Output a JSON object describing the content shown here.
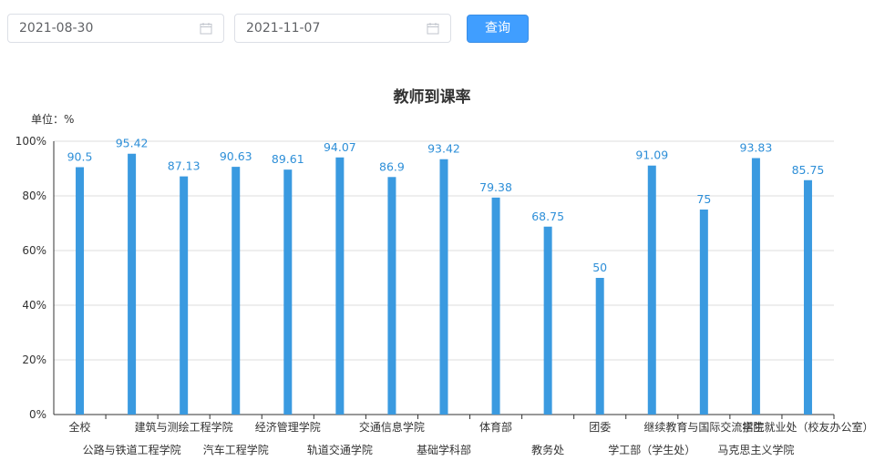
{
  "filters": {
    "start_date": "2021-08-30",
    "end_date": "2021-11-07",
    "query_label": "查询"
  },
  "chart_data": {
    "type": "bar",
    "title": "教师到课率",
    "unit_label": "单位：%",
    "ylim": [
      0,
      100
    ],
    "y_ticks": [
      "0%",
      "20%",
      "40%",
      "60%",
      "80%",
      "100%"
    ],
    "categories": [
      "全校",
      "公路与铁道工程学院",
      "建筑与测绘工程学院",
      "汽车工程学院",
      "经济管理学院",
      "轨道交通学院",
      "交通信息学院",
      "基础学科部",
      "体育部",
      "教务处",
      "团委",
      "学工部（学生处）",
      "继续教育与国际交流学院",
      "马克思主义学院",
      "招生就业处（校友办公室）"
    ],
    "values": [
      90.5,
      95.42,
      87.13,
      90.63,
      89.61,
      94.07,
      86.9,
      93.42,
      79.38,
      68.75,
      50,
      91.09,
      75,
      93.83,
      85.75
    ],
    "bar_color": "#3a9ae0",
    "grid": true
  }
}
